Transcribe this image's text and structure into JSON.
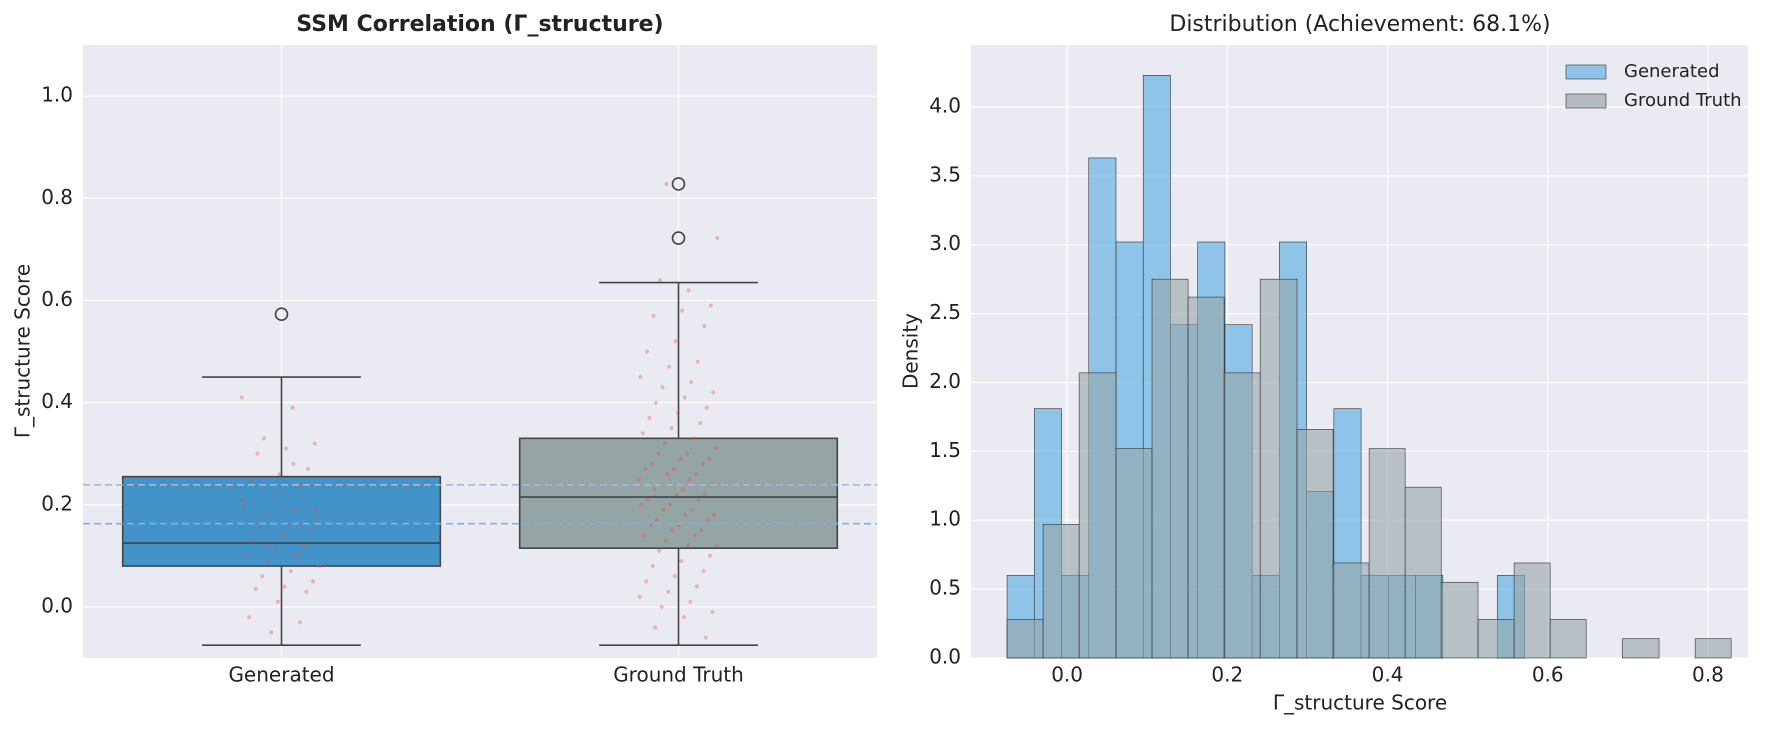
{
  "chart_data": [
    {
      "type": "box",
      "title": "SSM Correlation (Γ_structure)",
      "ylabel": "Γ_structure Score",
      "categories": [
        "Generated",
        "Ground Truth"
      ],
      "colors": [
        "#4393c9",
        "#95a5a5"
      ],
      "whislo": [
        -0.075,
        -0.075
      ],
      "q1": [
        0.08,
        0.115
      ],
      "median": [
        0.125,
        0.215
      ],
      "q3": [
        0.255,
        0.33
      ],
      "whishi": [
        0.45,
        0.635
      ],
      "fliers": [
        [
          0.573
        ],
        [
          0.828,
          0.722
        ]
      ],
      "point_color": "#e74c3c",
      "points": [
        [
          0.41,
          0.39,
          0.33,
          0.32,
          0.31,
          0.3,
          0.27,
          0.26,
          0.25,
          0.24,
          0.22,
          0.2,
          0.19,
          0.18,
          0.17,
          0.16,
          0.16,
          0.15,
          0.14,
          0.13,
          0.12,
          0.11,
          0.1,
          0.1,
          0.09,
          0.08,
          0.07,
          0.06,
          0.05,
          0.04,
          0.035,
          0.03,
          0.01,
          -0.02,
          -0.03,
          -0.05,
          0.21,
          0.28,
          0.12,
          0.19
        ],
        [
          0.828,
          0.722,
          0.62,
          0.64,
          0.59,
          0.58,
          0.57,
          0.55,
          0.52,
          0.5,
          0.48,
          0.47,
          0.45,
          0.44,
          0.43,
          0.42,
          0.41,
          0.4,
          0.39,
          0.38,
          0.37,
          0.36,
          0.35,
          0.34,
          0.33,
          0.32,
          0.31,
          0.3,
          0.3,
          0.29,
          0.29,
          0.28,
          0.28,
          0.27,
          0.27,
          0.26,
          0.26,
          0.25,
          0.25,
          0.24,
          0.24,
          0.23,
          0.23,
          0.22,
          0.22,
          0.21,
          0.21,
          0.2,
          0.2,
          0.19,
          0.19,
          0.18,
          0.18,
          0.17,
          0.17,
          0.16,
          0.16,
          0.15,
          0.15,
          0.14,
          0.14,
          0.13,
          0.12,
          0.12,
          0.11,
          0.1,
          0.09,
          0.08,
          0.07,
          0.06,
          0.05,
          0.04,
          0.03,
          0.02,
          0.01,
          0.0,
          -0.01,
          -0.02,
          -0.04,
          -0.06
        ]
      ],
      "reference_lines": [
        {
          "value": 0.239,
          "color": "#a9b8d6"
        },
        {
          "value": 0.163,
          "color": "#7fb2e0"
        }
      ],
      "ylim": [
        -0.1,
        1.1
      ],
      "yticks": [
        {
          "value": 0,
          "label": "0.0"
        },
        0.2,
        0.4,
        0.6,
        0.8,
        {
          "value": 1,
          "label": "1.0"
        }
      ],
      "grid": true
    },
    {
      "type": "histogram",
      "title": "Distribution (Achievement: 68.1%)",
      "xlabel": "Γ_structure Score",
      "ylabel": "Density",
      "series": [
        {
          "name": "Generated",
          "color": "#5dade2",
          "bins": [
            -0.075,
            -0.041,
            -0.007,
            0.027,
            0.061,
            0.095,
            0.129,
            0.163,
            0.197,
            0.231,
            0.265,
            0.299,
            0.333,
            0.367,
            0.401,
            0.435,
            0.469,
            0.503,
            0.537,
            0.571
          ],
          "values": [
            0.6,
            1.81,
            0.6,
            3.63,
            3.02,
            4.23,
            2.42,
            3.02,
            2.42,
            0.6,
            3.02,
            1.21,
            1.81,
            0.6,
            0.6,
            0.6,
            0,
            0,
            0.6
          ]
        },
        {
          "name": "Ground Truth",
          "color": "#95a5a6",
          "bins": [
            -0.075,
            -0.03,
            0.015,
            0.061,
            0.106,
            0.151,
            0.196,
            0.241,
            0.287,
            0.332,
            0.377,
            0.422,
            0.467,
            0.513,
            0.558,
            0.603,
            0.648,
            0.693,
            0.739,
            0.784,
            0.829
          ],
          "values": [
            0.28,
            0.97,
            2.07,
            1.52,
            2.75,
            2.62,
            2.07,
            2.75,
            1.66,
            0.69,
            1.52,
            1.24,
            0.55,
            0.28,
            0.69,
            0.28,
            0,
            0.14,
            0,
            0.14
          ]
        }
      ],
      "xlim": [
        -0.12,
        0.85
      ],
      "xticks": [
        {
          "value": 0,
          "label": "0.0"
        },
        0.2,
        0.4,
        0.6,
        0.8
      ],
      "ylim": [
        0,
        4.45
      ],
      "yticks": [
        {
          "value": 0,
          "label": "0.0"
        },
        0.5,
        {
          "value": 1,
          "label": "1.0"
        },
        1.5,
        {
          "value": 2,
          "label": "2.0"
        },
        2.5,
        {
          "value": 3,
          "label": "3.0"
        },
        3.5,
        {
          "value": 4,
          "label": "4.0"
        }
      ],
      "grid": true,
      "legend": "upper right"
    }
  ]
}
